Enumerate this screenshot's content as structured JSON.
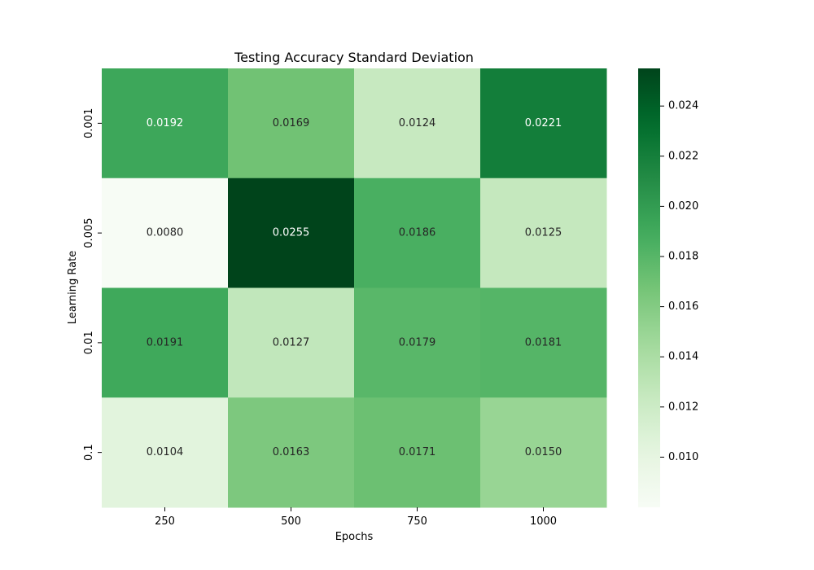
{
  "chart_data": {
    "type": "heatmap",
    "title": "Testing Accuracy Standard Deviation",
    "xlabel": "Epochs",
    "ylabel": "Learning Rate",
    "x_categories": [
      "250",
      "500",
      "750",
      "1000"
    ],
    "y_categories": [
      "0.001",
      "0.005",
      "0.01",
      "0.1"
    ],
    "values": [
      [
        0.0192,
        0.0169,
        0.0124,
        0.0221
      ],
      [
        0.008,
        0.0255,
        0.0186,
        0.0125
      ],
      [
        0.0191,
        0.0127,
        0.0179,
        0.0181
      ],
      [
        0.0104,
        0.0163,
        0.0171,
        0.015
      ]
    ],
    "value_labels": [
      [
        "0.0192",
        "0.0169",
        "0.0124",
        "0.0221"
      ],
      [
        "0.0080",
        "0.0255",
        "0.0186",
        "0.0125"
      ],
      [
        "0.0191",
        "0.0127",
        "0.0179",
        "0.0181"
      ],
      [
        "0.0104",
        "0.0163",
        "0.0171",
        "0.0150"
      ]
    ],
    "colormap": "Greens",
    "color_range": [
      0.008,
      0.0255
    ],
    "colorbar_ticks": [
      "0.010",
      "0.012",
      "0.014",
      "0.016",
      "0.018",
      "0.020",
      "0.022",
      "0.024"
    ],
    "colorbar_tick_values": [
      0.01,
      0.012,
      0.014,
      0.016,
      0.018,
      0.02,
      0.022,
      0.024
    ],
    "grid": false,
    "legend": "colorbar-right"
  }
}
